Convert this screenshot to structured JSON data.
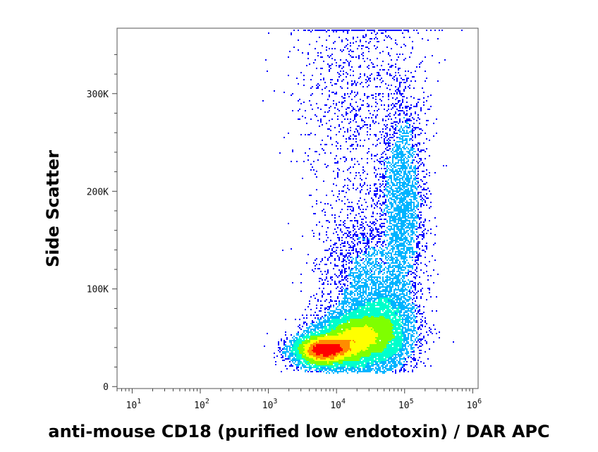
{
  "chart_data": {
    "type": "scatter",
    "style": "density-colored flow cytometry dot plot",
    "title": "",
    "xlabel": "anti-mouse CD18 (purified low endotoxin) / DAR APC",
    "ylabel": "Side Scatter",
    "x_scale": "log",
    "xlim": [
      6,
      1200000
    ],
    "ylim": [
      -2000,
      367000
    ],
    "x_ticks": [
      {
        "base": "10",
        "exp": "1",
        "value": 10
      },
      {
        "base": "10",
        "exp": "2",
        "value": 100
      },
      {
        "base": "10",
        "exp": "3",
        "value": 1000
      },
      {
        "base": "10",
        "exp": "4",
        "value": 10000
      },
      {
        "base": "10",
        "exp": "5",
        "value": 100000
      },
      {
        "base": "10",
        "exp": "6",
        "value": 1000000
      }
    ],
    "y_ticks": [
      {
        "label": "0",
        "value": 0
      },
      {
        "label": "100K",
        "value": 100000
      },
      {
        "label": "200K",
        "value": 200000
      },
      {
        "label": "300K",
        "value": 300000
      }
    ],
    "density_colors": [
      "#0000ff",
      "#00b4ff",
      "#00ffcc",
      "#7fff00",
      "#ffff00",
      "#ff8c00",
      "#ff0000"
    ],
    "populations": [
      {
        "center": {
          "x": 6500,
          "y": 38000
        },
        "spread": {
          "log_x": 0.22,
          "y": 8000
        },
        "weight": 0.3
      },
      {
        "center": {
          "x": 18000,
          "y": 50000
        },
        "spread": {
          "log_x": 0.28,
          "y": 14000
        },
        "weight": 0.27
      },
      {
        "center": {
          "x": 45000,
          "y": 60000
        },
        "spread": {
          "log_x": 0.25,
          "y": 22000
        },
        "weight": 0.18
      },
      {
        "center": {
          "x": 90000,
          "y": 185000
        },
        "spread": {
          "log_x": 0.16,
          "y": 55000
        },
        "weight": 0.12
      },
      {
        "center": {
          "x": 25000,
          "y": 120000
        },
        "spread": {
          "log_x": 0.35,
          "y": 40000
        },
        "weight": 0.08
      },
      {
        "center": {
          "x": 20000,
          "y": 300000
        },
        "spread": {
          "log_x": 0.45,
          "y": 60000
        },
        "weight": 0.05
      }
    ],
    "events": 22000,
    "grid": false,
    "legend": "none"
  }
}
